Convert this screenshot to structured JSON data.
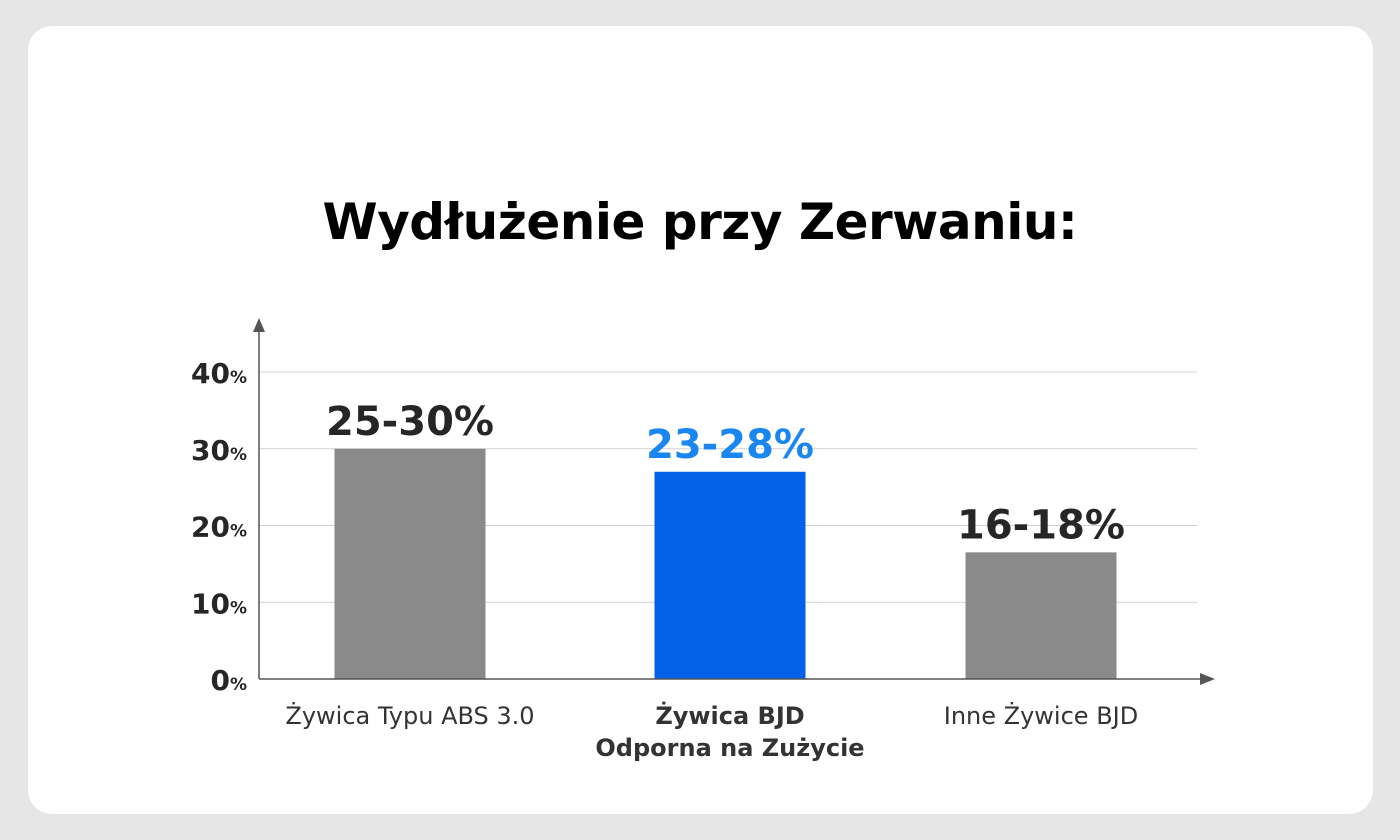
{
  "colors": {
    "background": "#e6e6e6",
    "card": "#ffffff",
    "bar_default": "#8a8a8a",
    "bar_highlight": "#0261e6",
    "label_default": "#262626",
    "label_highlight": "#1a86f0",
    "axis": "#555555",
    "grid": "#d0d0d0"
  },
  "chart_data": {
    "type": "bar",
    "title": "Wydłużenie przy Zerwaniu:",
    "xlabel": "",
    "ylabel": "",
    "ylim": [
      0,
      40
    ],
    "grid": true,
    "yticks": [
      {
        "value": 0,
        "num": "0",
        "unit": "%"
      },
      {
        "value": 10,
        "num": "10",
        "unit": "%"
      },
      {
        "value": 20,
        "num": "20",
        "unit": "%"
      },
      {
        "value": 30,
        "num": "30",
        "unit": "%"
      },
      {
        "value": 40,
        "num": "40",
        "unit": "%"
      }
    ],
    "categories": [
      {
        "lines": [
          "Żywica Typu ABS 3.0"
        ],
        "bold": false
      },
      {
        "lines": [
          "Żywica BJD",
          "Odporna na Zużycie"
        ],
        "bold": true
      },
      {
        "lines": [
          "Inne Żywice BJD"
        ],
        "bold": false
      }
    ],
    "values": [
      30,
      27,
      16.5
    ],
    "labels": [
      "25-30%",
      "23-28%",
      "16-18%"
    ],
    "highlight_index": 1
  }
}
